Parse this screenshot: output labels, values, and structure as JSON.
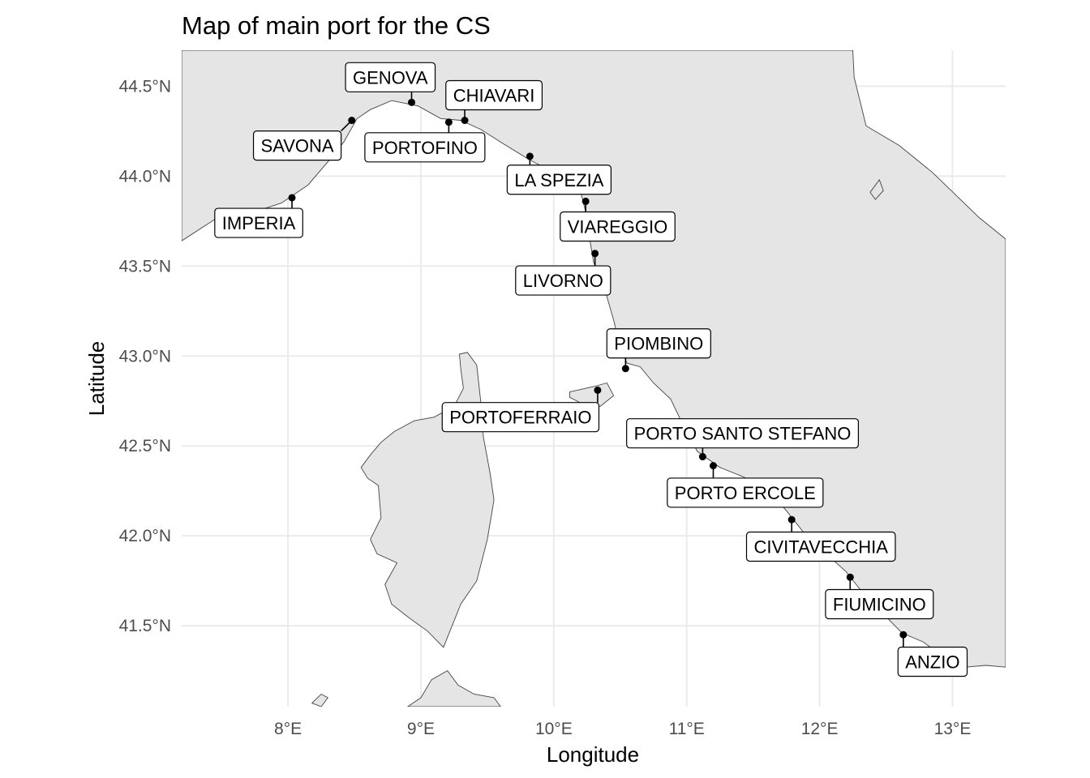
{
  "title": "Map of main port for the CS",
  "xlabel": "Longitude",
  "ylabel": "Latitude",
  "colors": {
    "land": "#e5e5e5",
    "coast": "#444444",
    "grid": "#ebebeb",
    "point": "#000000",
    "background": "#ffffff"
  },
  "chart_data": {
    "type": "map",
    "xlim": [
      7.2,
      13.4
    ],
    "ylim": [
      41.05,
      44.7
    ],
    "x_ticks": [
      {
        "value": 8,
        "label": "8°E"
      },
      {
        "value": 9,
        "label": "9°E"
      },
      {
        "value": 10,
        "label": "10°E"
      },
      {
        "value": 11,
        "label": "11°E"
      },
      {
        "value": 12,
        "label": "12°E"
      },
      {
        "value": 13,
        "label": "13°E"
      }
    ],
    "y_ticks": [
      {
        "value": 41.5,
        "label": "41.5°N"
      },
      {
        "value": 42.0,
        "label": "42.0°N"
      },
      {
        "value": 42.5,
        "label": "42.5°N"
      },
      {
        "value": 43.0,
        "label": "43.0°N"
      },
      {
        "value": 43.5,
        "label": "43.5°N"
      },
      {
        "value": 44.0,
        "label": "44.0°N"
      },
      {
        "value": 44.5,
        "label": "44.5°N"
      }
    ],
    "grid": true,
    "points": [
      {
        "name": "GENOVA",
        "lon": 8.93,
        "lat": 44.41,
        "label_lon": 8.77,
        "label_lat": 44.55
      },
      {
        "name": "CHIAVARI",
        "lon": 9.33,
        "lat": 44.31,
        "label_lon": 9.55,
        "label_lat": 44.45
      },
      {
        "name": "SAVONA",
        "lon": 8.48,
        "lat": 44.31,
        "label_lon": 8.07,
        "label_lat": 44.17
      },
      {
        "name": "PORTOFINO",
        "lon": 9.21,
        "lat": 44.3,
        "label_lon": 9.03,
        "label_lat": 44.16
      },
      {
        "name": "LA SPEZIA",
        "lon": 9.82,
        "lat": 44.11,
        "label_lon": 10.04,
        "label_lat": 43.98
      },
      {
        "name": "IMPERIA",
        "lon": 8.03,
        "lat": 43.88,
        "label_lon": 7.78,
        "label_lat": 43.74
      },
      {
        "name": "VIAREGGIO",
        "lon": 10.24,
        "lat": 43.86,
        "label_lon": 10.48,
        "label_lat": 43.72
      },
      {
        "name": "LIVORNO",
        "lon": 10.31,
        "lat": 43.57,
        "label_lon": 10.07,
        "label_lat": 43.42
      },
      {
        "name": "PIOMBINO",
        "lon": 10.54,
        "lat": 42.93,
        "label_lon": 10.79,
        "label_lat": 43.07
      },
      {
        "name": "PORTOFERRAIO",
        "lon": 10.33,
        "lat": 42.81,
        "label_lon": 9.75,
        "label_lat": 42.66
      },
      {
        "name": "PORTO SANTO STEFANO",
        "lon": 11.12,
        "lat": 42.44,
        "label_lon": 11.42,
        "label_lat": 42.57
      },
      {
        "name": "PORTO ERCOLE",
        "lon": 11.2,
        "lat": 42.39,
        "label_lon": 11.44,
        "label_lat": 42.24
      },
      {
        "name": "CIVITAVECCHIA",
        "lon": 11.79,
        "lat": 42.09,
        "label_lon": 12.01,
        "label_lat": 41.94
      },
      {
        "name": "FIUMICINO",
        "lon": 12.23,
        "lat": 41.77,
        "label_lon": 12.45,
        "label_lat": 41.62
      },
      {
        "name": "ANZIO",
        "lon": 12.63,
        "lat": 41.45,
        "label_lon": 12.85,
        "label_lat": 41.3
      }
    ],
    "land": {
      "mainland": [
        [
          7.2,
          43.64
        ],
        [
          7.45,
          43.76
        ],
        [
          7.7,
          43.79
        ],
        [
          7.95,
          43.85
        ],
        [
          8.15,
          43.95
        ],
        [
          8.3,
          44.08
        ],
        [
          8.42,
          44.19
        ],
        [
          8.52,
          44.32
        ],
        [
          8.62,
          44.37
        ],
        [
          8.78,
          44.42
        ],
        [
          8.85,
          44.41
        ],
        [
          8.98,
          44.39
        ],
        [
          9.15,
          44.32
        ],
        [
          9.3,
          44.31
        ],
        [
          9.45,
          44.26
        ],
        [
          9.62,
          44.18
        ],
        [
          9.82,
          44.09
        ],
        [
          9.95,
          44.04
        ],
        [
          10.1,
          44.0
        ],
        [
          10.2,
          43.92
        ],
        [
          10.24,
          43.8
        ],
        [
          10.27,
          43.65
        ],
        [
          10.3,
          43.52
        ],
        [
          10.38,
          43.38
        ],
        [
          10.45,
          43.2
        ],
        [
          10.5,
          43.05
        ],
        [
          10.55,
          42.96
        ],
        [
          10.65,
          42.94
        ],
        [
          10.75,
          42.85
        ],
        [
          10.88,
          42.76
        ],
        [
          10.97,
          42.62
        ],
        [
          11.08,
          42.47
        ],
        [
          11.25,
          42.38
        ],
        [
          11.42,
          42.33
        ],
        [
          11.6,
          42.26
        ],
        [
          11.75,
          42.14
        ],
        [
          11.9,
          42.0
        ],
        [
          12.05,
          41.9
        ],
        [
          12.2,
          41.8
        ],
        [
          12.35,
          41.66
        ],
        [
          12.5,
          41.55
        ],
        [
          12.62,
          41.46
        ],
        [
          12.78,
          41.41
        ],
        [
          12.98,
          41.3
        ],
        [
          13.1,
          41.27
        ],
        [
          13.25,
          41.28
        ],
        [
          13.4,
          41.27
        ],
        [
          13.4,
          43.65
        ],
        [
          13.2,
          43.77
        ],
        [
          12.85,
          44.02
        ],
        [
          12.6,
          44.17
        ],
        [
          12.35,
          44.28
        ],
        [
          12.26,
          44.55
        ],
        [
          12.25,
          44.7
        ],
        [
          7.2,
          44.7
        ]
      ],
      "corsica": [
        [
          9.29,
          43.01
        ],
        [
          9.35,
          43.02
        ],
        [
          9.42,
          42.95
        ],
        [
          9.45,
          42.75
        ],
        [
          9.47,
          42.55
        ],
        [
          9.52,
          42.35
        ],
        [
          9.55,
          42.2
        ],
        [
          9.5,
          41.98
        ],
        [
          9.42,
          41.75
        ],
        [
          9.3,
          41.62
        ],
        [
          9.17,
          41.38
        ],
        [
          9.05,
          41.47
        ],
        [
          8.9,
          41.55
        ],
        [
          8.78,
          41.62
        ],
        [
          8.73,
          41.73
        ],
        [
          8.82,
          41.85
        ],
        [
          8.67,
          41.9
        ],
        [
          8.62,
          41.98
        ],
        [
          8.7,
          42.1
        ],
        [
          8.68,
          42.28
        ],
        [
          8.6,
          42.32
        ],
        [
          8.55,
          42.38
        ],
        [
          8.62,
          42.45
        ],
        [
          8.7,
          42.52
        ],
        [
          8.8,
          42.58
        ],
        [
          8.95,
          42.64
        ],
        [
          9.1,
          42.66
        ],
        [
          9.25,
          42.72
        ],
        [
          9.32,
          42.82
        ],
        [
          9.3,
          42.93
        ]
      ],
      "sardinia": [
        [
          9.2,
          41.25
        ],
        [
          9.28,
          41.17
        ],
        [
          9.4,
          41.12
        ],
        [
          9.55,
          41.1
        ],
        [
          9.6,
          41.05
        ],
        [
          8.9,
          41.05
        ],
        [
          9.0,
          41.1
        ],
        [
          9.08,
          41.2
        ]
      ],
      "elba": [
        [
          10.12,
          42.8
        ],
        [
          10.3,
          42.83
        ],
        [
          10.4,
          42.85
        ],
        [
          10.45,
          42.78
        ],
        [
          10.35,
          42.72
        ],
        [
          10.2,
          42.74
        ],
        [
          10.12,
          42.77
        ]
      ],
      "capraia": [
        [
          9.8,
          44.0
        ],
        [
          9.85,
          43.95
        ],
        [
          9.9,
          43.97
        ],
        [
          9.87,
          44.03
        ]
      ],
      "adriatic_islet": [
        [
          12.38,
          43.91
        ],
        [
          12.45,
          43.98
        ],
        [
          12.48,
          43.92
        ],
        [
          12.42,
          43.87
        ]
      ],
      "france_islets": [
        [
          8.18,
          41.07
        ],
        [
          8.25,
          41.12
        ],
        [
          8.3,
          41.1
        ],
        [
          8.25,
          41.05
        ]
      ]
    }
  }
}
